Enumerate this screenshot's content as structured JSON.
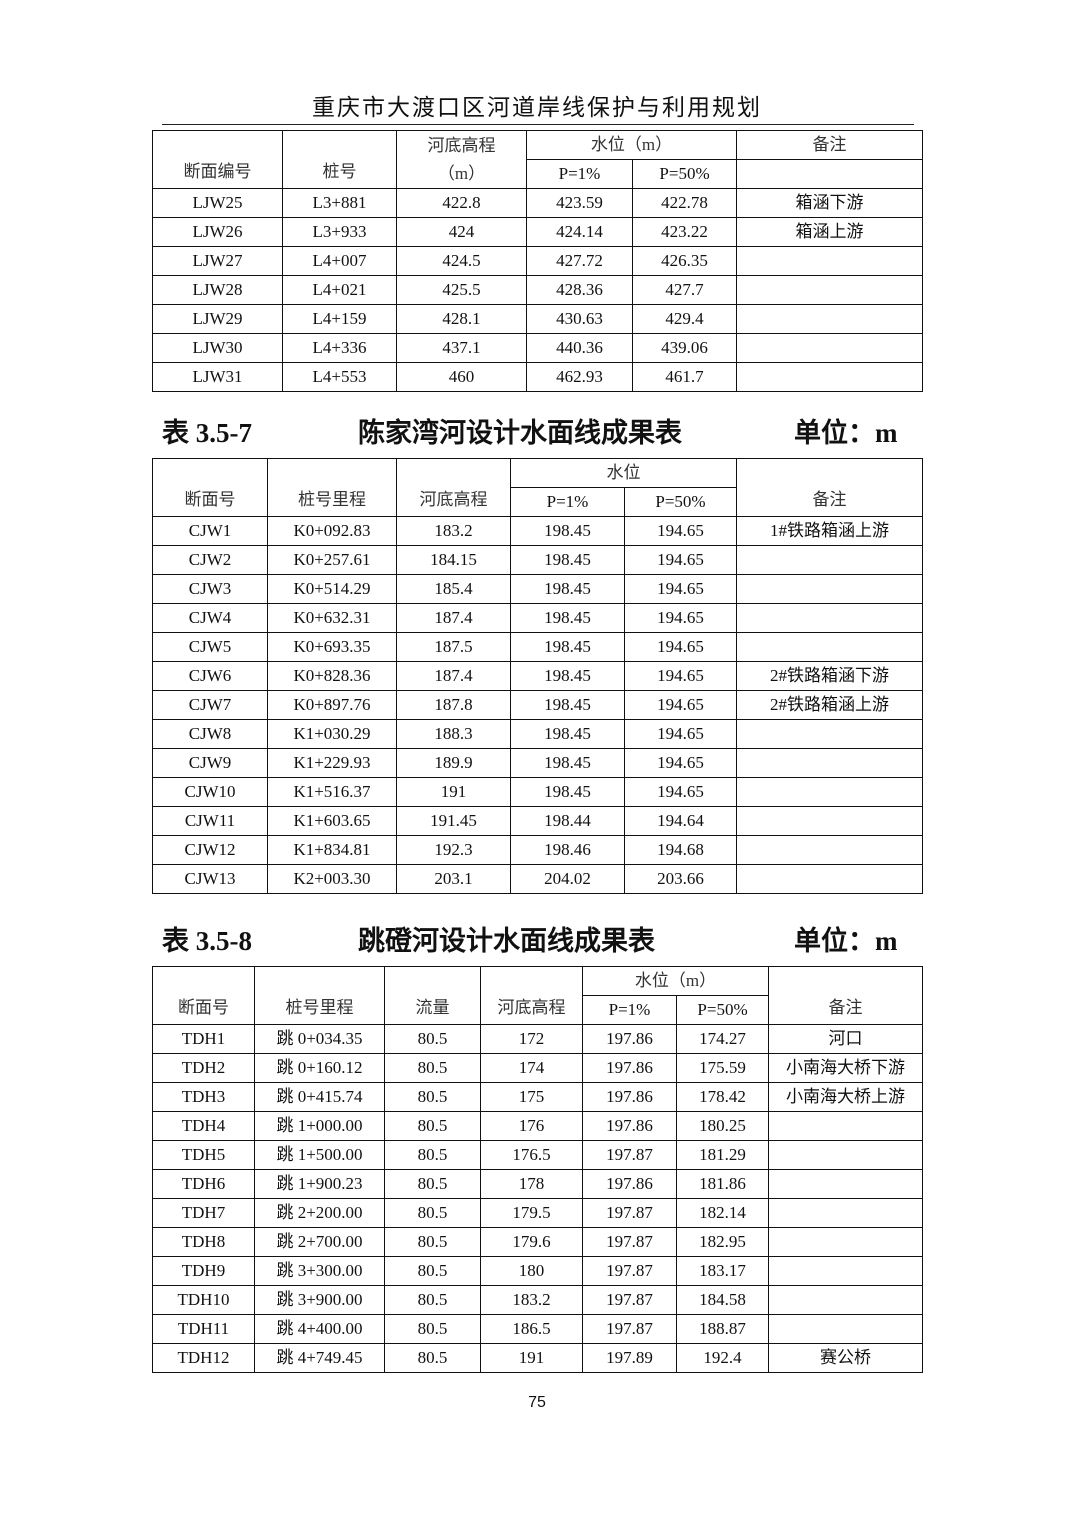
{
  "header": {
    "title": "重庆市大渡口区河道岸线保护与利用规划"
  },
  "table1": {
    "headers": {
      "id": "断面编号",
      "stake": "桩号",
      "bed": "河底高程",
      "bed_unit": "（m）",
      "water": "水位（m）",
      "p1": "P=1%",
      "p50": "P=50%",
      "note": "备注"
    },
    "rows": [
      [
        "LJW25",
        "L3+881",
        "422.8",
        "423.59",
        "422.78",
        "箱涵下游"
      ],
      [
        "LJW26",
        "L3+933",
        "424",
        "424.14",
        "423.22",
        "箱涵上游"
      ],
      [
        "LJW27",
        "L4+007",
        "424.5",
        "427.72",
        "426.35",
        ""
      ],
      [
        "LJW28",
        "L4+021",
        "425.5",
        "428.36",
        "427.7",
        ""
      ],
      [
        "LJW29",
        "L4+159",
        "428.1",
        "430.63",
        "429.4",
        ""
      ],
      [
        "LJW30",
        "L4+336",
        "437.1",
        "440.36",
        "439.06",
        ""
      ],
      [
        "LJW31",
        "L4+553",
        "460",
        "462.93",
        "461.7",
        ""
      ]
    ]
  },
  "caption2": {
    "number": "表 3.5-7",
    "title": "陈家湾河设计水面线成果表",
    "unit": "单位：m"
  },
  "table2": {
    "headers": {
      "id": "断面号",
      "stake": "桩号里程",
      "bed": "河底高程",
      "water": "水位",
      "p1": "P=1%",
      "p50": "P=50%",
      "note": "备注"
    },
    "rows": [
      [
        "CJW1",
        "K0+092.83",
        "183.2",
        "198.45",
        "194.65",
        "1#铁路箱涵上游"
      ],
      [
        "CJW2",
        "K0+257.61",
        "184.15",
        "198.45",
        "194.65",
        ""
      ],
      [
        "CJW3",
        "K0+514.29",
        "185.4",
        "198.45",
        "194.65",
        ""
      ],
      [
        "CJW4",
        "K0+632.31",
        "187.4",
        "198.45",
        "194.65",
        ""
      ],
      [
        "CJW5",
        "K0+693.35",
        "187.5",
        "198.45",
        "194.65",
        ""
      ],
      [
        "CJW6",
        "K0+828.36",
        "187.4",
        "198.45",
        "194.65",
        "2#铁路箱涵下游"
      ],
      [
        "CJW7",
        "K0+897.76",
        "187.8",
        "198.45",
        "194.65",
        "2#铁路箱涵上游"
      ],
      [
        "CJW8",
        "K1+030.29",
        "188.3",
        "198.45",
        "194.65",
        ""
      ],
      [
        "CJW9",
        "K1+229.93",
        "189.9",
        "198.45",
        "194.65",
        ""
      ],
      [
        "CJW10",
        "K1+516.37",
        "191",
        "198.45",
        "194.65",
        ""
      ],
      [
        "CJW11",
        "K1+603.65",
        "191.45",
        "198.44",
        "194.64",
        ""
      ],
      [
        "CJW12",
        "K1+834.81",
        "192.3",
        "198.46",
        "194.68",
        ""
      ],
      [
        "CJW13",
        "K2+003.30",
        "203.1",
        "204.02",
        "203.66",
        ""
      ]
    ]
  },
  "caption3": {
    "number": "表 3.5-8",
    "title": "跳磴河设计水面线成果表",
    "unit": "单位：m"
  },
  "table3": {
    "headers": {
      "id": "断面号",
      "stake": "桩号里程",
      "flow": "流量",
      "bed": "河底高程",
      "water": "水位（m）",
      "p1": "P=1%",
      "p50": "P=50%",
      "note": "备注"
    },
    "rows": [
      [
        "TDH1",
        "跳 0+034.35",
        "80.5",
        "172",
        "197.86",
        "174.27",
        "河口"
      ],
      [
        "TDH2",
        "跳 0+160.12",
        "80.5",
        "174",
        "197.86",
        "175.59",
        "小南海大桥下游"
      ],
      [
        "TDH3",
        "跳 0+415.74",
        "80.5",
        "175",
        "197.86",
        "178.42",
        "小南海大桥上游"
      ],
      [
        "TDH4",
        "跳 1+000.00",
        "80.5",
        "176",
        "197.86",
        "180.25",
        ""
      ],
      [
        "TDH5",
        "跳 1+500.00",
        "80.5",
        "176.5",
        "197.87",
        "181.29",
        ""
      ],
      [
        "TDH6",
        "跳 1+900.23",
        "80.5",
        "178",
        "197.86",
        "181.86",
        ""
      ],
      [
        "TDH7",
        "跳 2+200.00",
        "80.5",
        "179.5",
        "197.87",
        "182.14",
        ""
      ],
      [
        "TDH8",
        "跳 2+700.00",
        "80.5",
        "179.6",
        "197.87",
        "182.95",
        ""
      ],
      [
        "TDH9",
        "跳 3+300.00",
        "80.5",
        "180",
        "197.87",
        "183.17",
        ""
      ],
      [
        "TDH10",
        "跳 3+900.00",
        "80.5",
        "183.2",
        "197.87",
        "184.58",
        ""
      ],
      [
        "TDH11",
        "跳 4+400.00",
        "80.5",
        "186.5",
        "197.87",
        "188.87",
        ""
      ],
      [
        "TDH12",
        "跳 4+749.45",
        "80.5",
        "191",
        "197.89",
        "192.4",
        "赛公桥"
      ]
    ]
  },
  "footer": {
    "page_number": "75"
  }
}
